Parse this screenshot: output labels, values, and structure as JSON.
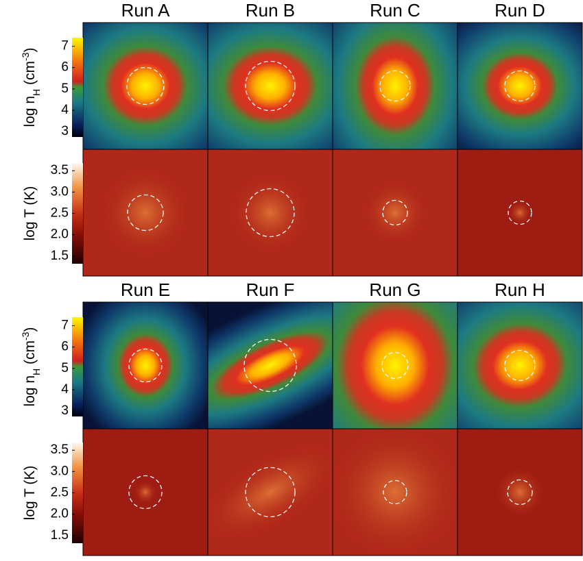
{
  "colorbars": {
    "density": {
      "label_parts": [
        "log n",
        "H",
        " (cm",
        "-3",
        ")"
      ],
      "lim": [
        2.75,
        7.4
      ],
      "ticks": [
        3,
        4,
        5,
        6,
        7
      ]
    },
    "temperature": {
      "label_parts": [
        "log T (K)"
      ],
      "lim": [
        1.32,
        3.68
      ],
      "ticks": [
        1.5,
        {
          "value": 2,
          "label": "2.0"
        },
        2.5,
        {
          "value": 3,
          "label": "3.0"
        },
        3.5
      ]
    }
  },
  "panel_groups": [
    {
      "runs": [
        "Run A",
        "Run B",
        "Run C",
        "Run D"
      ]
    },
    {
      "runs": [
        "Run E",
        "Run F",
        "Run G",
        "Run H"
      ]
    }
  ]
}
